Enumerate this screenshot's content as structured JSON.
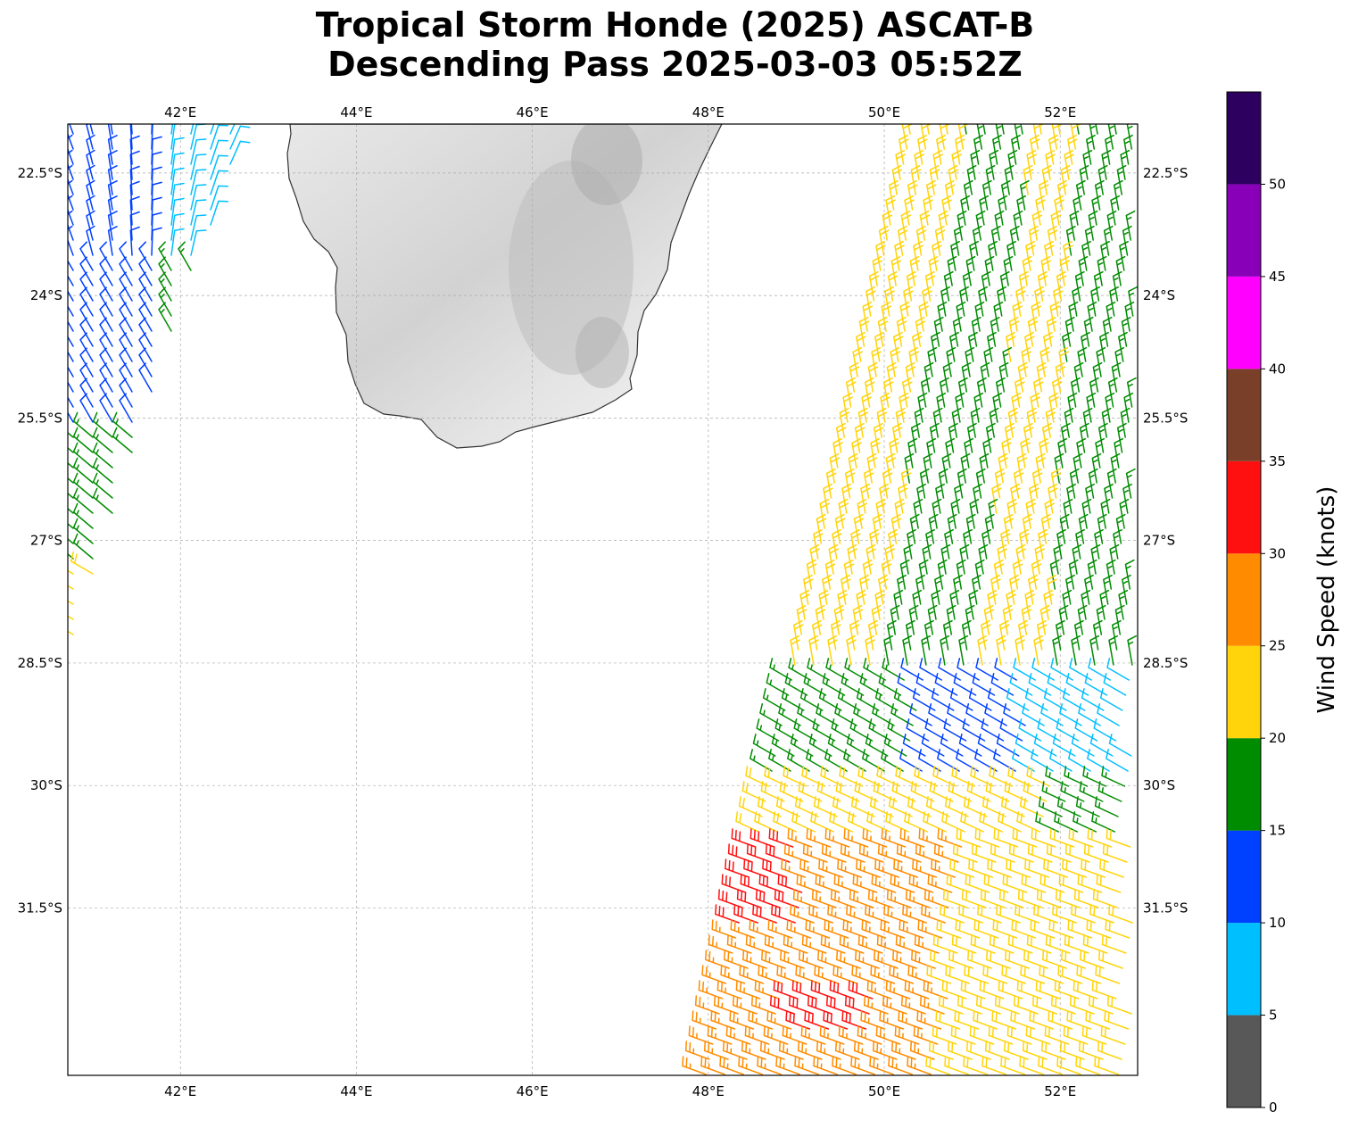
{
  "title": {
    "line1": "Tropical Storm Honde (2025) ASCAT-B",
    "line2": "Descending Pass 2025-03-03 05:52Z"
  },
  "map": {
    "lon_range": [
      40.72,
      52.88
    ],
    "lat_range": [
      -33.55,
      -21.9
    ],
    "lon_ticks": [
      42,
      44,
      46,
      48,
      50,
      52
    ],
    "lon_tick_labels": [
      "42°E",
      "44°E",
      "46°E",
      "48°E",
      "50°E",
      "52°E"
    ],
    "lat_ticks": [
      -22.5,
      -24,
      -25.5,
      -27,
      -28.5,
      -30,
      -31.5
    ],
    "lat_tick_labels": [
      "22.5°S",
      "24°S",
      "25.5°S",
      "27°S",
      "28.5°S",
      "30°S",
      "31.5°S"
    ],
    "land_feature": "Madagascar (southern portion) with grayscale terrain shading"
  },
  "colorbar": {
    "label": "Wind Speed (knots)",
    "ticks": [
      0,
      5,
      10,
      15,
      20,
      25,
      30,
      35,
      40,
      45,
      50
    ],
    "tick_labels": [
      "0",
      "5",
      "10",
      "15",
      "20",
      "25",
      "30",
      "35",
      "40",
      "45",
      "50"
    ],
    "bins": [
      {
        "min": 0,
        "max": 5,
        "color": "#585858"
      },
      {
        "min": 5,
        "max": 10,
        "color": "#00bfff"
      },
      {
        "min": 10,
        "max": 15,
        "color": "#0040ff"
      },
      {
        "min": 15,
        "max": 20,
        "color": "#008c00"
      },
      {
        "min": 20,
        "max": 25,
        "color": "#ffd40a"
      },
      {
        "min": 25,
        "max": 30,
        "color": "#ff8c00"
      },
      {
        "min": 30,
        "max": 35,
        "color": "#ff1010"
      },
      {
        "min": 35,
        "max": 40,
        "color": "#7a3f28"
      },
      {
        "min": 40,
        "max": 45,
        "color": "#ff00ff"
      },
      {
        "min": 45,
        "max": 50,
        "color": "#8800b8"
      },
      {
        "min": 50,
        "max": 55,
        "color": "#2d0060"
      }
    ]
  }
}
